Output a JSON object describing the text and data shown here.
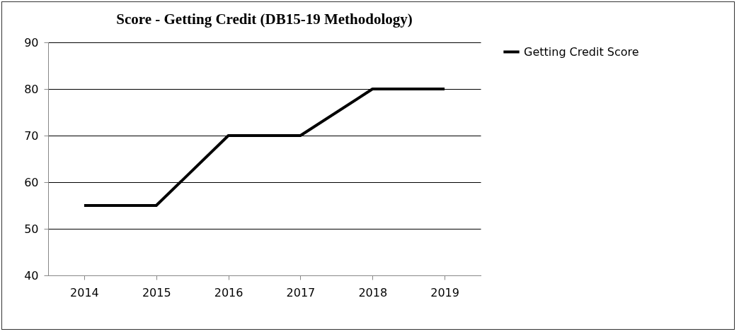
{
  "chart_data": {
    "type": "line",
    "title": "Score - Getting Credit (DB15-19 Methodology)",
    "categories": [
      "2014",
      "2015",
      "2016",
      "2017",
      "2018",
      "2019"
    ],
    "series": [
      {
        "name": "Getting Credit Score",
        "color": "#000000",
        "values": [
          55,
          55,
          70,
          70,
          80,
          80
        ]
      }
    ],
    "ylim": [
      40,
      90
    ],
    "yticks": [
      40,
      50,
      60,
      70,
      80,
      90
    ],
    "grid": "y",
    "legend": "right",
    "marker": "none",
    "line_style": "solid"
  }
}
